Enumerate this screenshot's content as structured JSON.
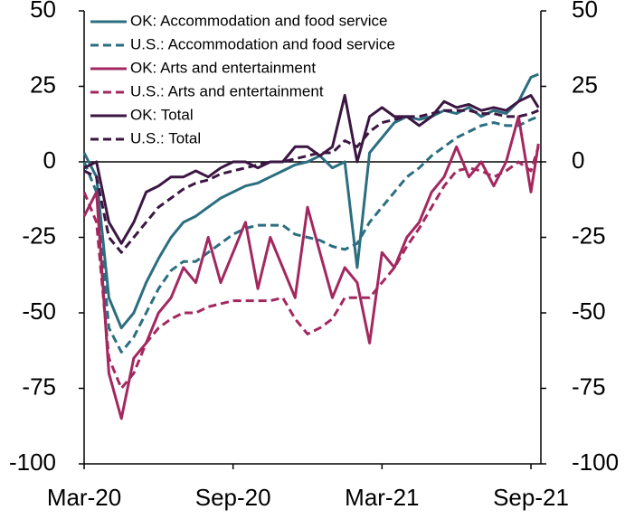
{
  "chart_data": {
    "type": "line",
    "x": [
      0,
      0.5,
      1,
      1.5,
      2,
      2.5,
      3,
      3.5,
      4,
      4.5,
      5,
      5.5,
      6,
      6.5,
      7,
      7.5,
      8,
      8.5,
      9,
      9.5,
      10,
      10.5,
      11,
      11.5,
      12,
      12.5,
      13,
      13.5,
      14,
      14.5,
      15,
      15.5,
      16,
      16.5,
      17,
      17.5,
      18,
      18.3
    ],
    "xlim": [
      0,
      18.4
    ],
    "xticks": [
      {
        "value": 0,
        "label": "Mar-20"
      },
      {
        "value": 6,
        "label": "Sep-20"
      },
      {
        "value": 12,
        "label": "Mar-21"
      },
      {
        "value": 18,
        "label": "Sep-21"
      }
    ],
    "ylim": [
      -100,
      50
    ],
    "yticks": [
      50,
      25,
      0,
      -25,
      -50,
      -75,
      -100
    ],
    "y2lim": [
      -100,
      50
    ],
    "y2ticks": [
      50,
      25,
      0,
      -25,
      -50,
      -75,
      -100
    ],
    "series": [
      {
        "name": "OK: Accommodation and food service",
        "color": "#2b6e80",
        "dashed": false,
        "values": [
          3,
          -5,
          -45,
          -55,
          -50,
          -40,
          -32,
          -25,
          -20,
          -18,
          -15,
          -12,
          -10,
          -8,
          -7,
          -5,
          -3,
          -1,
          0,
          2,
          -2,
          0,
          -35,
          3,
          8,
          13,
          15,
          14,
          15,
          17,
          16,
          18,
          15,
          17,
          16,
          20,
          28,
          29
        ]
      },
      {
        "name": "U.S.: Accommodation and food service",
        "color": "#2b6e80",
        "dashed": true,
        "values": [
          0,
          -10,
          -55,
          -63,
          -58,
          -50,
          -42,
          -36,
          -33,
          -33,
          -30,
          -27,
          -24,
          -22,
          -21,
          -21,
          -21,
          -24,
          -25,
          -26,
          -28,
          -29,
          -27,
          -20,
          -15,
          -10,
          -5,
          -2,
          2,
          5,
          8,
          10,
          12,
          13,
          12,
          12,
          14,
          15
        ]
      },
      {
        "name": "OK: Arts and entertainment",
        "color": "#a3285f",
        "dashed": false,
        "values": [
          -18,
          -10,
          -70,
          -85,
          -65,
          -60,
          -50,
          -45,
          -35,
          -40,
          -25,
          -40,
          -30,
          -20,
          -42,
          -25,
          -35,
          -45,
          -15,
          -30,
          -45,
          -35,
          -40,
          -60,
          -30,
          -35,
          -25,
          -20,
          -10,
          -5,
          5,
          -5,
          0,
          -8,
          0,
          15,
          -10,
          6
        ]
      },
      {
        "name": "U.S.: Arts and entertainment",
        "color": "#a3285f",
        "dashed": true,
        "values": [
          -10,
          -20,
          -65,
          -75,
          -70,
          -60,
          -55,
          -52,
          -50,
          -50,
          -48,
          -47,
          -46,
          -46,
          -46,
          -46,
          -45,
          -52,
          -57,
          -55,
          -52,
          -45,
          -45,
          -45,
          -40,
          -35,
          -28,
          -22,
          -15,
          -8,
          -3,
          -2,
          -3,
          -5,
          -3,
          0,
          -3,
          5
        ]
      },
      {
        "name": "OK: Total",
        "color": "#3b1642",
        "dashed": false,
        "values": [
          -2,
          0,
          -20,
          -27,
          -20,
          -10,
          -8,
          -5,
          -5,
          -3,
          -5,
          -2,
          0,
          0,
          -2,
          0,
          0,
          5,
          5,
          2,
          5,
          22,
          0,
          15,
          18,
          15,
          15,
          12,
          15,
          20,
          18,
          19,
          17,
          18,
          17,
          20,
          22,
          18
        ]
      },
      {
        "name": "U.S.: Total",
        "color": "#3b1642",
        "dashed": true,
        "values": [
          -3,
          -5,
          -25,
          -30,
          -25,
          -20,
          -15,
          -12,
          -9,
          -7,
          -6,
          -4,
          -3,
          -2,
          -1,
          0,
          0,
          1,
          2,
          3,
          3,
          7,
          5,
          10,
          13,
          14,
          15,
          15,
          16,
          17,
          17,
          17,
          16,
          16,
          15,
          15,
          16,
          17
        ]
      }
    ]
  }
}
